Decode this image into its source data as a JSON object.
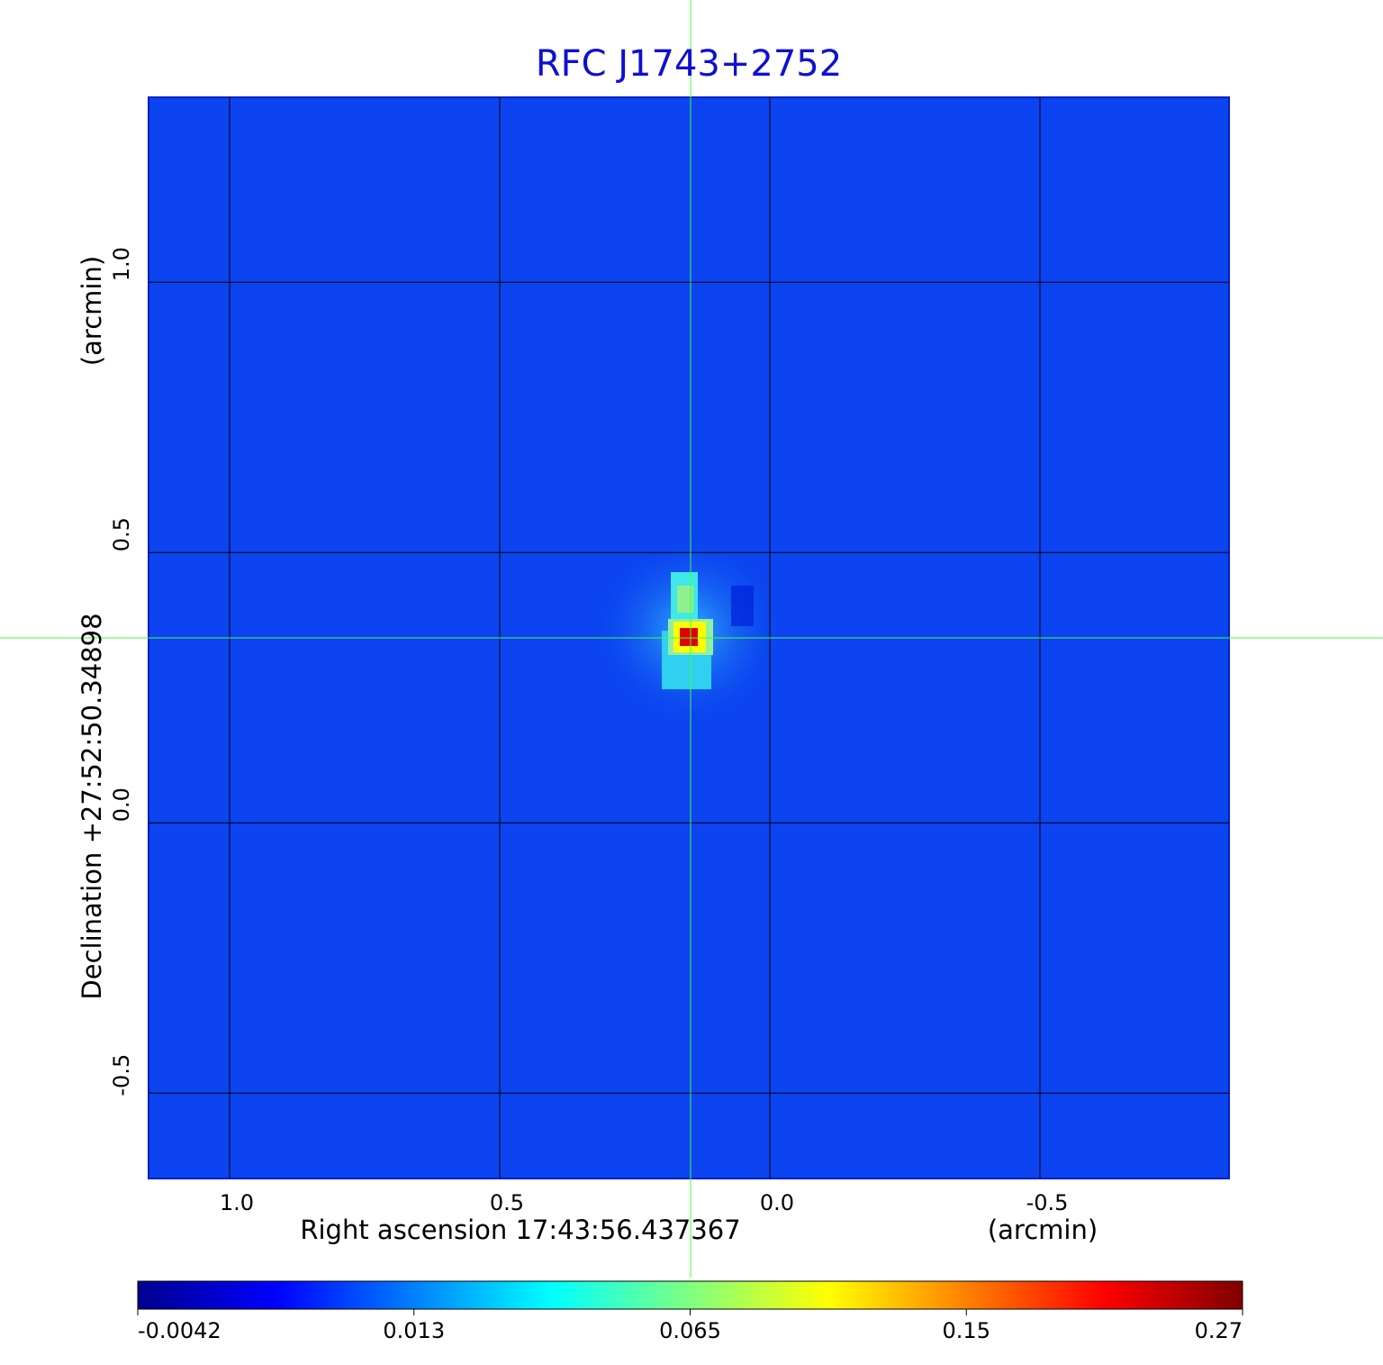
{
  "chart_data": {
    "type": "image",
    "title": "RFC J1743+2752",
    "x_label": "Right ascension  17:43:56.437367",
    "x_unit": "(arcmin)",
    "y_label": "Declination  +27:52:50.34898",
    "y_unit": "(arcmin)",
    "xlim": [
      1.15,
      -0.85
    ],
    "ylim": [
      -0.658,
      1.342
    ],
    "xticks": [
      {
        "value": 1.0,
        "label": "1.0"
      },
      0.5,
      {
        "value": 0.0,
        "label": "0.0"
      },
      -0.5
    ],
    "yticks": [
      {
        "value": -0.5,
        "label": "-0.5"
      },
      {
        "value": 0.0,
        "label": "0.0"
      },
      0.5,
      {
        "value": 1.0,
        "label": "1.0"
      }
    ],
    "grid": true,
    "colorbar": {
      "ticks": [
        -0.0042,
        0.013,
        0.065,
        0.15,
        0.27
      ],
      "colors": [
        "#00008f",
        "#0000ff",
        "#0080ff",
        "#00ffff",
        "#80ff80",
        "#ffff00",
        "#ff8000",
        "#ff0000",
        "#800000"
      ]
    }
  }
}
